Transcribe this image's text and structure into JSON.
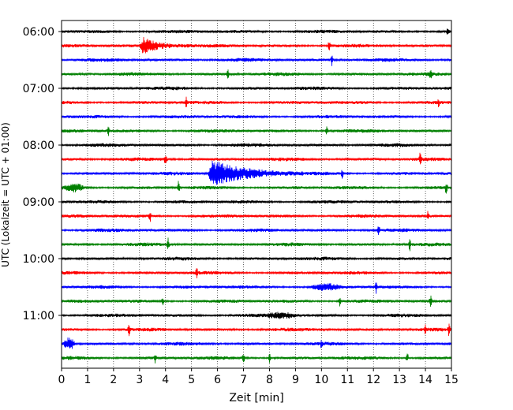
{
  "chart_data": {
    "type": "line",
    "subtype": "helicorder",
    "xlabel": "Zeit  [min]",
    "ylabel": "UTC (Lokalzeit = UTC + 01:00)",
    "xlim": [
      0,
      15
    ],
    "x_ticks": [
      "0",
      "1",
      "2",
      "3",
      "4",
      "5",
      "6",
      "7",
      "8",
      "9",
      "10",
      "11",
      "12",
      "13",
      "14",
      "15"
    ],
    "y_tick_labels": [
      "06:00",
      "07:00",
      "08:00",
      "09:00",
      "10:00",
      "11:00"
    ],
    "row_minutes": 15,
    "start_time": "06:00",
    "row_count": 24,
    "colors": [
      "#000000",
      "#ff0000",
      "#0000ff",
      "#008000"
    ],
    "grid": "vertical dotted",
    "events": [
      {
        "row": 1,
        "minute": 3.0,
        "duration": 2.2,
        "amplitude": 10,
        "kind": "quake"
      },
      {
        "row": 1,
        "minute": 10.3,
        "duration": 0.1,
        "amplitude": 9,
        "kind": "spike"
      },
      {
        "row": 2,
        "minute": 10.4,
        "duration": 0.1,
        "amplitude": 8,
        "kind": "spike"
      },
      {
        "row": 3,
        "minute": 6.4,
        "duration": 0.1,
        "amplitude": 6,
        "kind": "spike"
      },
      {
        "row": 3,
        "minute": 14.2,
        "duration": 0.1,
        "amplitude": 8,
        "kind": "spike"
      },
      {
        "row": 5,
        "minute": 4.8,
        "duration": 0.1,
        "amplitude": 7,
        "kind": "spike"
      },
      {
        "row": 5,
        "minute": 14.5,
        "duration": 0.2,
        "amplitude": 5,
        "kind": "spike"
      },
      {
        "row": 7,
        "minute": 1.8,
        "duration": 0.3,
        "amplitude": 6,
        "kind": "spike"
      },
      {
        "row": 7,
        "minute": 10.2,
        "duration": 0.1,
        "amplitude": 5,
        "kind": "spike"
      },
      {
        "row": 9,
        "minute": 4.0,
        "duration": 0.1,
        "amplitude": 9,
        "kind": "spike"
      },
      {
        "row": 9,
        "minute": 13.8,
        "duration": 0.1,
        "amplitude": 8,
        "kind": "spike"
      },
      {
        "row": 10,
        "minute": 5.6,
        "duration": 3.7,
        "amplitude": 17,
        "kind": "quake"
      },
      {
        "row": 10,
        "minute": 10.8,
        "duration": 0.1,
        "amplitude": 6,
        "kind": "spike"
      },
      {
        "row": 11,
        "minute": 0.1,
        "duration": 0.8,
        "amplitude": 4,
        "kind": "burst"
      },
      {
        "row": 11,
        "minute": 4.5,
        "duration": 0.1,
        "amplitude": 9,
        "kind": "spike"
      },
      {
        "row": 11,
        "minute": 14.8,
        "duration": 0.1,
        "amplitude": 9,
        "kind": "spike"
      },
      {
        "row": 13,
        "minute": 3.4,
        "duration": 0.1,
        "amplitude": 8,
        "kind": "spike"
      },
      {
        "row": 13,
        "minute": 14.1,
        "duration": 0.1,
        "amplitude": 8,
        "kind": "spike"
      },
      {
        "row": 14,
        "minute": 12.2,
        "duration": 0.1,
        "amplitude": 7,
        "kind": "spike"
      },
      {
        "row": 15,
        "minute": 4.1,
        "duration": 0.1,
        "amplitude": 9,
        "kind": "spike"
      },
      {
        "row": 15,
        "minute": 13.4,
        "duration": 0.1,
        "amplitude": 8,
        "kind": "spike"
      },
      {
        "row": 17,
        "minute": 5.2,
        "duration": 0.1,
        "amplitude": 8,
        "kind": "spike"
      },
      {
        "row": 18,
        "minute": 9.5,
        "duration": 1.3,
        "amplitude": 3,
        "kind": "burst"
      },
      {
        "row": 18,
        "minute": 12.1,
        "duration": 0.1,
        "amplitude": 7,
        "kind": "spike"
      },
      {
        "row": 19,
        "minute": 3.9,
        "duration": 0.1,
        "amplitude": 7,
        "kind": "spike"
      },
      {
        "row": 19,
        "minute": 10.7,
        "duration": 0.1,
        "amplitude": 6,
        "kind": "spike"
      },
      {
        "row": 19,
        "minute": 14.2,
        "duration": 0.1,
        "amplitude": 8,
        "kind": "spike"
      },
      {
        "row": 20,
        "minute": 7.8,
        "duration": 1.4,
        "amplitude": 3,
        "kind": "burst"
      },
      {
        "row": 21,
        "minute": 2.6,
        "duration": 0.1,
        "amplitude": 8,
        "kind": "spike"
      },
      {
        "row": 21,
        "minute": 14.0,
        "duration": 0.1,
        "amplitude": 7,
        "kind": "spike"
      },
      {
        "row": 21,
        "minute": 14.9,
        "duration": 0.1,
        "amplitude": 8,
        "kind": "spike"
      },
      {
        "row": 22,
        "minute": 0.05,
        "duration": 0.5,
        "amplitude": 7,
        "kind": "burst"
      },
      {
        "row": 22,
        "minute": 10.0,
        "duration": 0.1,
        "amplitude": 6,
        "kind": "spike"
      },
      {
        "row": 23,
        "minute": 3.6,
        "duration": 0.1,
        "amplitude": 7,
        "kind": "spike"
      },
      {
        "row": 23,
        "minute": 7.0,
        "duration": 0.1,
        "amplitude": 7,
        "kind": "spike"
      },
      {
        "row": 23,
        "minute": 8.0,
        "duration": 0.1,
        "amplitude": 6,
        "kind": "spike"
      },
      {
        "row": 23,
        "minute": 13.3,
        "duration": 0.1,
        "amplitude": 8,
        "kind": "spike"
      }
    ]
  }
}
